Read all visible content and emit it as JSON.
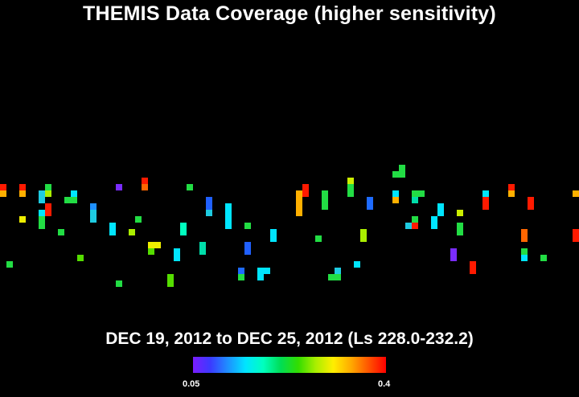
{
  "title": "THEMIS Data Coverage (higher sensitivity)",
  "date_range": "DEC 19, 2012 to DEC 25, 2012 (Ls 228.0-232.2)",
  "colorbar": {
    "min_label": "0.05",
    "max_label": "0.4",
    "stops": [
      "#7a1cff",
      "#3b3bff",
      "#1e90ff",
      "#00e5ff",
      "#00ffbf",
      "#00dd55",
      "#33dd00",
      "#aaee00",
      "#ffee00",
      "#ffaa00",
      "#ff5500",
      "#ff0000"
    ]
  },
  "cells": [
    {
      "value": 0.4,
      "color": "#ff1a00"
    },
    {
      "value": 0.35,
      "color": "#ffb000"
    },
    {
      "value": 0.4,
      "color": "#ff1a00"
    },
    {
      "value": 0.35,
      "color": "#ffb000"
    },
    {
      "value": 0.2,
      "color": "#22dd44"
    },
    {
      "value": 0.25,
      "color": "#aaee00"
    },
    {
      "value": 0.12,
      "color": "#00e5ff"
    },
    {
      "value": 0.2,
      "color": "#22dd44"
    },
    {
      "value": 0.1,
      "color": "#1ecbe1"
    },
    {
      "value": 0.06,
      "color": "#7a2cff"
    },
    {
      "value": 0.4,
      "color": "#ff1a00"
    },
    {
      "value": 0.38,
      "color": "#ff6600"
    },
    {
      "value": 0.2,
      "color": "#22dd44"
    },
    {
      "value": 0.12,
      "color": "#00e5ff"
    },
    {
      "value": 0.2,
      "color": "#22dd44"
    },
    {
      "value": 0.4,
      "color": "#ff1a00"
    },
    {
      "value": 0.3,
      "color": "#eeee00"
    },
    {
      "value": 0.2,
      "color": "#22dd44"
    },
    {
      "value": 0.09,
      "color": "#1e90ff"
    },
    {
      "value": 0.1,
      "color": "#1ecbe1"
    },
    {
      "value": 0.12,
      "color": "#00e5ff"
    },
    {
      "value": 0.2,
      "color": "#22dd44"
    },
    {
      "value": 0.25,
      "color": "#aaee00"
    },
    {
      "value": 0.3,
      "color": "#eeee00"
    },
    {
      "value": 0.22,
      "color": "#55dd00"
    },
    {
      "value": 0.12,
      "color": "#00e5ff"
    },
    {
      "value": 0.15,
      "color": "#00ffbf"
    },
    {
      "value": 0.08,
      "color": "#2060ff"
    },
    {
      "value": 0.1,
      "color": "#1ecbe1"
    },
    {
      "value": 0.12,
      "color": "#00e5ff"
    },
    {
      "value": 0.2,
      "color": "#22dd44"
    },
    {
      "value": 0.15,
      "color": "#00ddaa"
    },
    {
      "value": 0.08,
      "color": "#2060ff"
    },
    {
      "value": 0.12,
      "color": "#00e5ff"
    },
    {
      "value": 0.08,
      "color": "#1e6bff"
    },
    {
      "value": 0.2,
      "color": "#22dd44"
    },
    {
      "value": 0.12,
      "color": "#00e5ff"
    },
    {
      "value": 0.12,
      "color": "#00e5ff"
    },
    {
      "value": 0.2,
      "color": "#22dd44"
    },
    {
      "value": 0.22,
      "color": "#55dd00"
    },
    {
      "value": 0.2,
      "color": "#22dd44"
    },
    {
      "value": 0.22,
      "color": "#55dd00"
    },
    {
      "value": 0.4,
      "color": "#ff1a00"
    },
    {
      "value": 0.35,
      "color": "#ffb000"
    },
    {
      "value": 0.2,
      "color": "#22dd44"
    },
    {
      "value": 0.28,
      "color": "#ccee00"
    },
    {
      "value": 0.2,
      "color": "#22dd44"
    },
    {
      "value": 0.2,
      "color": "#22dd44"
    },
    {
      "value": 0.08,
      "color": "#1e6bff"
    },
    {
      "value": 0.2,
      "color": "#22dd44"
    },
    {
      "value": 0.2,
      "color": "#22dd44"
    },
    {
      "value": 0.12,
      "color": "#00e5ff"
    },
    {
      "value": 0.35,
      "color": "#ffb000"
    },
    {
      "value": 0.2,
      "color": "#22dd44"
    },
    {
      "value": 0.15,
      "color": "#00ddaa"
    },
    {
      "value": 0.2,
      "color": "#22dd44"
    },
    {
      "value": 0.1,
      "color": "#1ecbe1"
    },
    {
      "value": 0.4,
      "color": "#ff1a00"
    },
    {
      "value": 0.12,
      "color": "#00e5ff"
    },
    {
      "value": 0.28,
      "color": "#ccee00"
    },
    {
      "value": 0.12,
      "color": "#00e5ff"
    },
    {
      "value": 0.2,
      "color": "#22dd44"
    },
    {
      "value": 0.12,
      "color": "#00e5ff"
    },
    {
      "value": 0.4,
      "color": "#ff1a00"
    }
  ]
}
